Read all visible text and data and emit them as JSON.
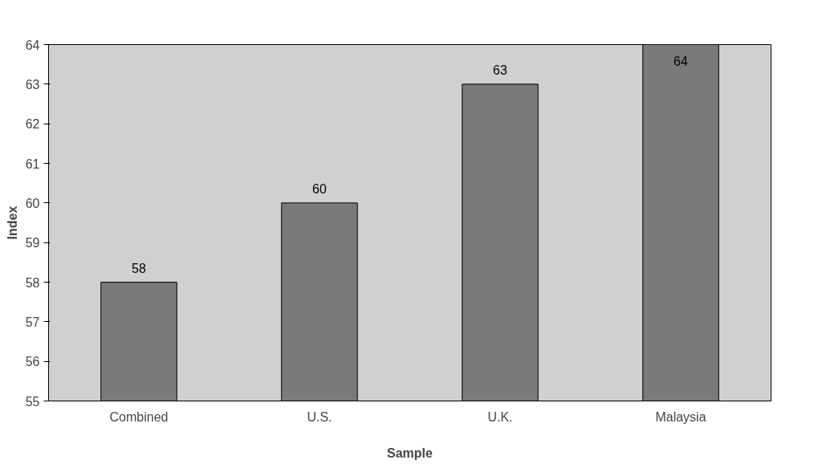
{
  "chart_data": {
    "type": "bar",
    "xlabel": "Sample",
    "ylabel": "Index",
    "categories": [
      "Combined",
      "U.S.",
      "U.K.",
      "Malaysia"
    ],
    "values": [
      58,
      60,
      63,
      64
    ],
    "color": "#7a7a7a",
    "ylim": [
      55,
      64
    ],
    "yticks": [
      55,
      56,
      57,
      58,
      59,
      60,
      61,
      62,
      63,
      64
    ],
    "data_labels": true,
    "grid": false
  }
}
